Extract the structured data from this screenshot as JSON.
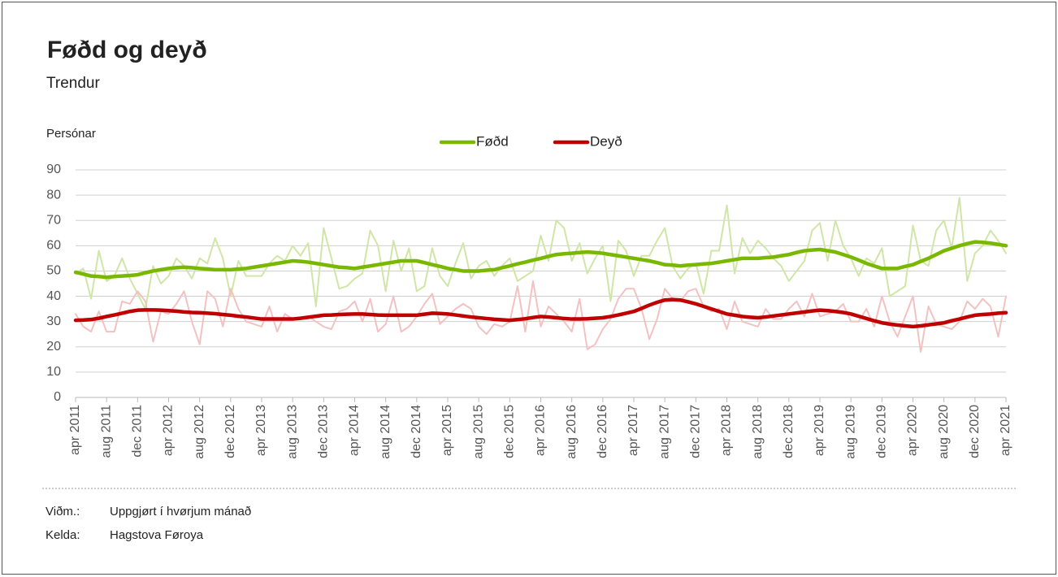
{
  "chart_data": {
    "type": "line",
    "title": "Føðd og deyð",
    "subtitle": "Trendur",
    "y_label": "Persónar",
    "categories": [
      "apr 2011",
      null,
      null,
      null,
      "aug 2011",
      null,
      null,
      null,
      "dec 2011",
      null,
      null,
      null,
      "apr 2012",
      null,
      null,
      null,
      "aug 2012",
      null,
      null,
      null,
      "dec 2012",
      null,
      null,
      null,
      "apr 2013",
      null,
      null,
      null,
      "aug 2013",
      null,
      null,
      null,
      "dec 2013",
      null,
      null,
      null,
      "apr 2014",
      null,
      null,
      null,
      "aug 2014",
      null,
      null,
      null,
      "dec 2014",
      null,
      null,
      null,
      "apr 2015",
      null,
      null,
      null,
      "aug 2015",
      null,
      null,
      null,
      "dec 2015",
      null,
      null,
      null,
      "apr 2016",
      null,
      null,
      null,
      "aug 2016",
      null,
      null,
      null,
      "dec 2016",
      null,
      null,
      null,
      "apr 2017",
      null,
      null,
      null,
      "aug 2017",
      null,
      null,
      null,
      "dec 2017",
      null,
      null,
      null,
      "apr 2018",
      null,
      null,
      null,
      "aug 2018",
      null,
      null,
      null,
      "dec 2018",
      null,
      null,
      null,
      "apr 2019",
      null,
      null,
      null,
      "aug 2019",
      null,
      null,
      null,
      "dec 2019",
      null,
      null,
      null,
      "apr 2020",
      null,
      null,
      null,
      "aug 2020",
      null,
      null,
      null,
      "dec 2020",
      null,
      null,
      null,
      "apr 2021"
    ],
    "series": [
      {
        "color": "#cfe6a6",
        "values": [
          49,
          51,
          39,
          58,
          46,
          48,
          55,
          47,
          41,
          35,
          52,
          45,
          48,
          55,
          52,
          47,
          55,
          53,
          63,
          55,
          40,
          54,
          48,
          48,
          48,
          53,
          56,
          54,
          60,
          56,
          61,
          36,
          67,
          55,
          43,
          44,
          47,
          49,
          66,
          60,
          42,
          62,
          50,
          59,
          42,
          44,
          59,
          48,
          44,
          53,
          61,
          47,
          52,
          54,
          48,
          52,
          55,
          46,
          48,
          50,
          64,
          54,
          70,
          67,
          54,
          61,
          49,
          55,
          60,
          38,
          62,
          58,
          48,
          56,
          56,
          62,
          67,
          52,
          47,
          51,
          53,
          41,
          58,
          58,
          76,
          49,
          63,
          57,
          62,
          59,
          55,
          52,
          46,
          50,
          54,
          66,
          69,
          54,
          70,
          60,
          55,
          48,
          55,
          53,
          59,
          40,
          42,
          44,
          68,
          54,
          52,
          66,
          70,
          59,
          79,
          46,
          57,
          60,
          66,
          62,
          57
        ]
      },
      {
        "color": "#f2c2c2",
        "values": [
          33,
          28,
          26,
          34,
          26,
          26,
          38,
          37,
          42,
          38,
          22,
          34,
          33,
          37,
          42,
          30,
          21,
          42,
          39,
          28,
          43,
          35,
          30,
          29,
          28,
          36,
          26,
          33,
          31,
          31,
          32,
          30,
          28,
          27,
          34,
          35,
          38,
          30,
          39,
          26,
          29,
          40,
          26,
          28,
          32,
          37,
          41,
          29,
          32,
          35,
          37,
          35,
          28,
          25,
          29,
          28,
          30,
          44,
          26,
          46,
          28,
          36,
          33,
          30,
          26,
          39,
          19,
          21,
          27,
          31,
          39,
          43,
          43,
          35,
          23,
          31,
          43,
          39,
          38,
          42,
          43,
          36,
          34,
          35,
          27,
          38,
          30,
          29,
          28,
          35,
          31,
          31,
          35,
          38,
          32,
          41,
          32,
          33,
          34,
          37,
          30,
          30,
          35,
          28,
          40,
          30,
          24,
          32,
          40,
          18,
          36,
          29,
          28,
          27,
          30,
          38,
          35,
          39,
          36,
          24,
          40
        ]
      },
      {
        "name": "Føðd",
        "color": "#7ab800",
        "values": [
          49.5,
          48.8,
          48,
          47.8,
          47.5,
          47.8,
          48,
          48.2,
          48.5,
          49.3,
          50,
          50.5,
          51,
          51.3,
          51.5,
          51.3,
          51,
          50.8,
          50.5,
          50.5,
          50.5,
          50.8,
          51,
          51.5,
          52,
          52.5,
          53,
          53.5,
          54,
          53.8,
          53.5,
          53,
          52.5,
          52,
          51.5,
          51.3,
          51,
          51.5,
          52,
          52.5,
          53,
          53.5,
          54,
          54,
          54,
          53.3,
          52.5,
          51.8,
          51,
          50.5,
          50,
          50,
          50,
          50.3,
          50.5,
          51.3,
          52,
          52.8,
          53.5,
          54.3,
          55,
          55.8,
          56.5,
          56.8,
          57,
          57.3,
          57.5,
          57.3,
          57,
          56.5,
          56,
          55.5,
          55,
          54.5,
          54,
          53.3,
          52.5,
          52.3,
          52,
          52.3,
          52.5,
          52.8,
          53,
          53.5,
          54,
          54.5,
          55,
          55,
          55,
          55.3,
          55.5,
          56,
          56.5,
          57.3,
          58,
          58.3,
          58.5,
          58,
          57.5,
          56.5,
          55.5,
          54.3,
          53,
          52,
          51,
          51,
          51,
          51.8,
          52.5,
          53.8,
          55,
          56.5,
          58,
          59,
          60,
          60.8,
          61.5,
          61.3,
          61,
          60.5,
          60
        ]
      },
      {
        "name": "Deyð",
        "color": "#c00000",
        "values": [
          30.5,
          30.6,
          30.8,
          31.3,
          32,
          32.6,
          33.3,
          34,
          34.5,
          34.6,
          34.6,
          34.5,
          34.3,
          34.1,
          33.8,
          33.6,
          33.5,
          33.3,
          33.1,
          32.8,
          32.5,
          32.1,
          31.8,
          31.4,
          31,
          31,
          31,
          31,
          31,
          31.3,
          31.7,
          32.1,
          32.5,
          32.6,
          32.8,
          32.9,
          33,
          33,
          32.8,
          32.6,
          32.5,
          32.5,
          32.5,
          32.5,
          32.5,
          32.9,
          33.3,
          33.2,
          33,
          32.6,
          32.2,
          31.8,
          31.5,
          31.2,
          30.9,
          30.7,
          30.5,
          30.8,
          31.1,
          31.6,
          32,
          31.8,
          31.5,
          31.2,
          31,
          31,
          31.1,
          31.3,
          31.5,
          32,
          32.6,
          33.3,
          34,
          35.2,
          36.5,
          37.6,
          38.5,
          38.7,
          38.5,
          37.8,
          37,
          36,
          35,
          34,
          33,
          32.5,
          32,
          31.7,
          31.5,
          31.8,
          32.2,
          32.6,
          33,
          33.4,
          33.8,
          34.2,
          34.5,
          34.3,
          34,
          33.6,
          33,
          32.1,
          31.2,
          30.3,
          29.5,
          29,
          28.6,
          28.3,
          28,
          28.3,
          28.7,
          29.1,
          29.5,
          30.3,
          31,
          31.8,
          32.5,
          32.8,
          33,
          33.3,
          33.5
        ]
      }
    ],
    "ylim": [
      0,
      90
    ],
    "yticks": [
      0,
      10,
      20,
      30,
      40,
      50,
      60,
      70,
      80,
      90
    ],
    "grid": true,
    "legend": "top",
    "notes": [
      {
        "label": "Viðm.:",
        "text": "Uppgjørt í hvørjum mánað"
      },
      {
        "label": "Kelda:",
        "text": "Hagstova Føroya"
      }
    ]
  }
}
